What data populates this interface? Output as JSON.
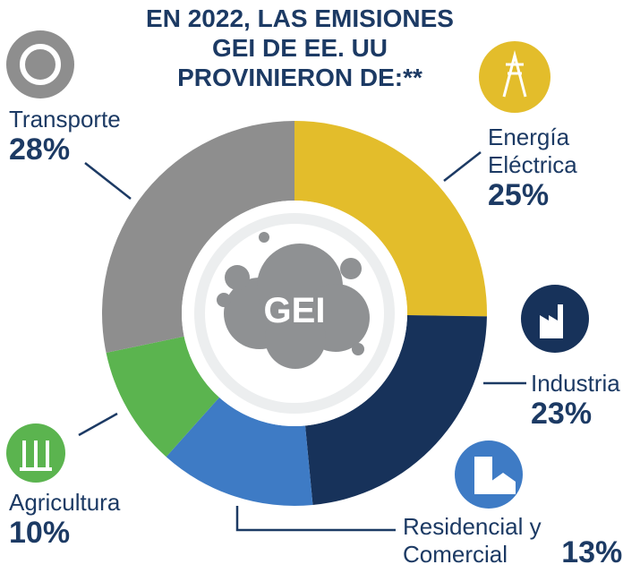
{
  "chart_data": {
    "type": "pie",
    "title": [
      "EN 2022, LAS EMISIONES",
      "GEI DE EE. UU",
      "PROVINIERON DE:**"
    ],
    "center_label": "GEI",
    "categories": [
      "Energía Eléctrica",
      "Industria",
      "Residencial y Comercial",
      "Agricultura",
      "Transporte"
    ],
    "values": [
      25,
      23,
      13,
      10,
      28
    ],
    "value_labels": [
      "25%",
      "23%",
      "13%",
      "10%",
      "28%"
    ],
    "colors": [
      "#e3bd2b",
      "#17325a",
      "#3e7bc5",
      "#5bb44f",
      "#8e8e8e"
    ]
  }
}
